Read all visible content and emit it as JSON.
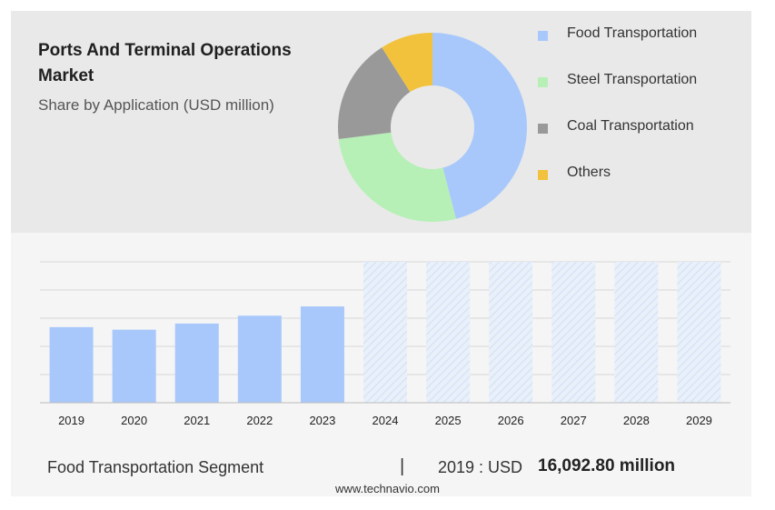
{
  "header": {
    "title": "Ports And Terminal Operations Market",
    "subtitle": "Share by Application (USD million)"
  },
  "chart_data": [
    {
      "type": "pie",
      "style": "donut",
      "title": "Ports And Terminal Operations Market",
      "subtitle": "Share by Application (USD million)",
      "categories": [
        "Food Transportation",
        "Steel Transportation",
        "Coal Transportation",
        "Others"
      ],
      "values": [
        46,
        27,
        18,
        9
      ],
      "colors": [
        "#a8c8fb",
        "#b6f0b6",
        "#999999",
        "#f2c23d"
      ],
      "legend_position": "right"
    },
    {
      "type": "bar",
      "categories": [
        "2019",
        "2020",
        "2021",
        "2022",
        "2023",
        "2024",
        "2025",
        "2026",
        "2027",
        "2028",
        "2029"
      ],
      "values": [
        16092.8,
        15550,
        16860,
        18530,
        20500,
        null,
        null,
        null,
        null,
        null,
        null
      ],
      "forecast_categories": [
        "2024",
        "2025",
        "2026",
        "2027",
        "2028",
        "2029"
      ],
      "ylim": [
        0,
        30000
      ],
      "grid": true,
      "bar_color": "#a8c8fb",
      "forecast_color": "#d6e4f7"
    }
  ],
  "footer": {
    "segment_label": "Food Transportation Segment",
    "separator": "|",
    "year_label": "2019 : USD",
    "value": "16,092.80 million",
    "source": "www.technavio.com"
  }
}
